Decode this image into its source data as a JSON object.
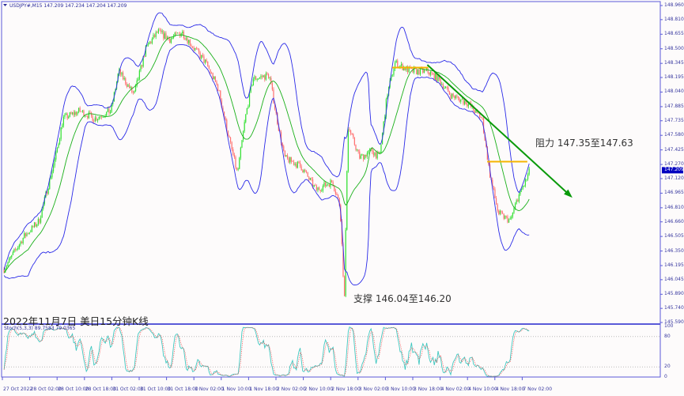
{
  "chart_data": {
    "type": "candlestick",
    "symbol_header": "USDJPY#,M15  147.209 147.234 147.204 147.209",
    "title": "2022年11月7日 美日15分钟K线",
    "current_price": "147.209",
    "y_ticks": [
      "148.960",
      "148.810",
      "148.655",
      "148.500",
      "148.345",
      "148.195",
      "148.040",
      "147.885",
      "147.735",
      "147.580",
      "147.425",
      "147.270",
      "147.120",
      "146.965",
      "146.810",
      "146.660",
      "146.505",
      "146.350",
      "146.195",
      "146.045",
      "145.890",
      "145.740",
      "145.590"
    ],
    "ylim": [
      145.59,
      148.96
    ],
    "x_ticks": [
      "27 Oct 2022",
      "28 Oct 02:00",
      "28 Oct 10:00",
      "28 Oct 18:00",
      "31 Oct 02:00",
      "31 Oct 10:00",
      "31 Oct 18:00",
      "1 Nov 02:00",
      "1 Nov 10:00",
      "1 Nov 18:00",
      "2 Nov 02:00",
      "2 Nov 10:00",
      "2 Nov 18:00",
      "3 Nov 02:00",
      "3 Nov 10:00",
      "3 Nov 18:00",
      "4 Nov 02:00",
      "4 Nov 10:00",
      "4 Nov 18:00",
      "7 Nov 02:00"
    ],
    "price_path": [
      {
        "t": "27 Oct 18:30",
        "p": 146.16
      },
      {
        "t": "28 Oct 00:15",
        "p": 146.5
      },
      {
        "t": "28 Oct 04:45",
        "p": 146.67
      },
      {
        "t": "28 Oct 09:30",
        "p": 147.34
      },
      {
        "t": "28 Oct 11:45",
        "p": 147.76
      },
      {
        "t": "28 Oct 16:30",
        "p": 147.84
      },
      {
        "t": "28 Oct 21:00",
        "p": 147.76
      },
      {
        "t": "31 Oct 01:45",
        "p": 147.84
      },
      {
        "t": "31 Oct 04:00",
        "p": 148.26
      },
      {
        "t": "31 Oct 08:30",
        "p": 148.01
      },
      {
        "t": "31 Oct 12:00",
        "p": 148.51
      },
      {
        "t": "31 Oct 15:30",
        "p": 148.68
      },
      {
        "t": "31 Oct 19:00",
        "p": 148.6
      },
      {
        "t": "31 Oct 22:30",
        "p": 148.68
      },
      {
        "t": "1 Nov 02:00",
        "p": 148.51
      },
      {
        "t": "1 Nov 05:30",
        "p": 148.35
      },
      {
        "t": "1 Nov 09:00",
        "p": 148.09
      },
      {
        "t": "1 Nov 12:30",
        "p": 147.51
      },
      {
        "t": "1 Nov 14:45",
        "p": 147.17
      },
      {
        "t": "1 Nov 17:00",
        "p": 147.76
      },
      {
        "t": "1 Nov 19:15",
        "p": 148.18
      },
      {
        "t": "2 Nov 00:00",
        "p": 148.22
      },
      {
        "t": "2 Nov 02:15",
        "p": 147.76
      },
      {
        "t": "2 Nov 04:30",
        "p": 147.34
      },
      {
        "t": "2 Nov 09:15",
        "p": 147.25
      },
      {
        "t": "2 Nov 13:45",
        "p": 147.0
      },
      {
        "t": "2 Nov 18:30",
        "p": 147.09
      },
      {
        "t": "2 Nov 20:45",
        "p": 146.83
      },
      {
        "t": "2 Nov 22:00",
        "p": 145.83
      },
      {
        "t": "2 Nov 23:00",
        "p": 147.68
      },
      {
        "t": "3 Nov 02:30",
        "p": 147.34
      },
      {
        "t": "3 Nov 06:00",
        "p": 147.42
      },
      {
        "t": "3 Nov 08:15",
        "p": 147.34
      },
      {
        "t": "3 Nov 10:30",
        "p": 148.01
      },
      {
        "t": "3 Nov 12:45",
        "p": 148.35
      },
      {
        "t": "3 Nov 17:30",
        "p": 148.26
      },
      {
        "t": "3 Nov 22:15",
        "p": 148.26
      },
      {
        "t": "4 Nov 01:30",
        "p": 148.18
      },
      {
        "t": "4 Nov 05:00",
        "p": 148.01
      },
      {
        "t": "4 Nov 09:45",
        "p": 147.93
      },
      {
        "t": "4 Nov 14:15",
        "p": 147.76
      },
      {
        "t": "4 Nov 16:30",
        "p": 147.17
      },
      {
        "t": "4 Nov 19:00",
        "p": 146.75
      },
      {
        "t": "4 Nov 22:30",
        "p": 146.67
      },
      {
        "t": "7 Nov 00:45",
        "p": 146.92
      },
      {
        "t": "7 Nov 03:00",
        "p": 147.09
      },
      {
        "t": "7 Nov 04:15",
        "p": 147.21
      }
    ],
    "indicators": [
      "Bollinger Bands",
      "Moving Average",
      "Stochastic"
    ],
    "stoch": {
      "label": "Stoch(5,3,3) 89.7583 79.0365",
      "y_ticks": [
        "100",
        "80",
        "20",
        "0"
      ],
      "levels": [
        80,
        20
      ]
    },
    "annotations": {
      "resistance": "阻力 147.35至147.63",
      "support": "支撑 146.04至146.20"
    },
    "trendline": {
      "from": {
        "t": "3 Nov 22:15",
        "p": 148.33
      },
      "to": {
        "t": "7 Nov 16:00",
        "p": 146.94
      },
      "color": "#0a9a0a"
    },
    "hlines": [
      {
        "from": "3 Nov 12:00",
        "to": "3 Nov 22:30",
        "p": 148.3,
        "color": "#f5b400"
      },
      {
        "from": "4 Nov 15:45",
        "to": "7 Nov 03:30",
        "p": 147.3,
        "color": "#f5b400"
      }
    ],
    "colors": {
      "up": "#33e033",
      "down": "#ff7070",
      "bands": "#2a2ae8",
      "ma": "#19b019",
      "stoch_main": "#3fc8c0",
      "stoch_signal": "#ff4040",
      "axis": "#5a5ad8",
      "price_tag": "#0000c0"
    }
  }
}
